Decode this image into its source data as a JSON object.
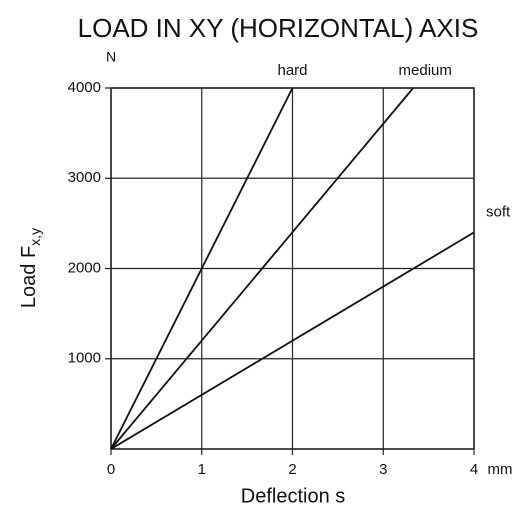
{
  "chart_data": {
    "type": "line",
    "title": "LOAD IN XY (HORIZONTAL) AXIS",
    "y_label": "Load F",
    "y_label_sub": "x,y",
    "y_unit": "N",
    "x_label": "Deflection s",
    "x_unit": "mm",
    "xlim": [
      0,
      4
    ],
    "ylim": [
      0,
      4000
    ],
    "xticks": [
      0,
      1,
      2,
      3,
      4
    ],
    "yticks": [
      1000,
      2000,
      3000,
      4000
    ],
    "grid": true,
    "series": [
      {
        "name": "hard",
        "color": "#111111",
        "x": [
          0,
          2
        ],
        "values": [
          0,
          4000
        ]
      },
      {
        "name": "medium",
        "color": "#111111",
        "x": [
          0,
          3.33
        ],
        "values": [
          0,
          4000
        ]
      },
      {
        "name": "soft",
        "color": "#111111",
        "x": [
          0,
          4
        ],
        "values": [
          0,
          2400
        ]
      }
    ]
  }
}
